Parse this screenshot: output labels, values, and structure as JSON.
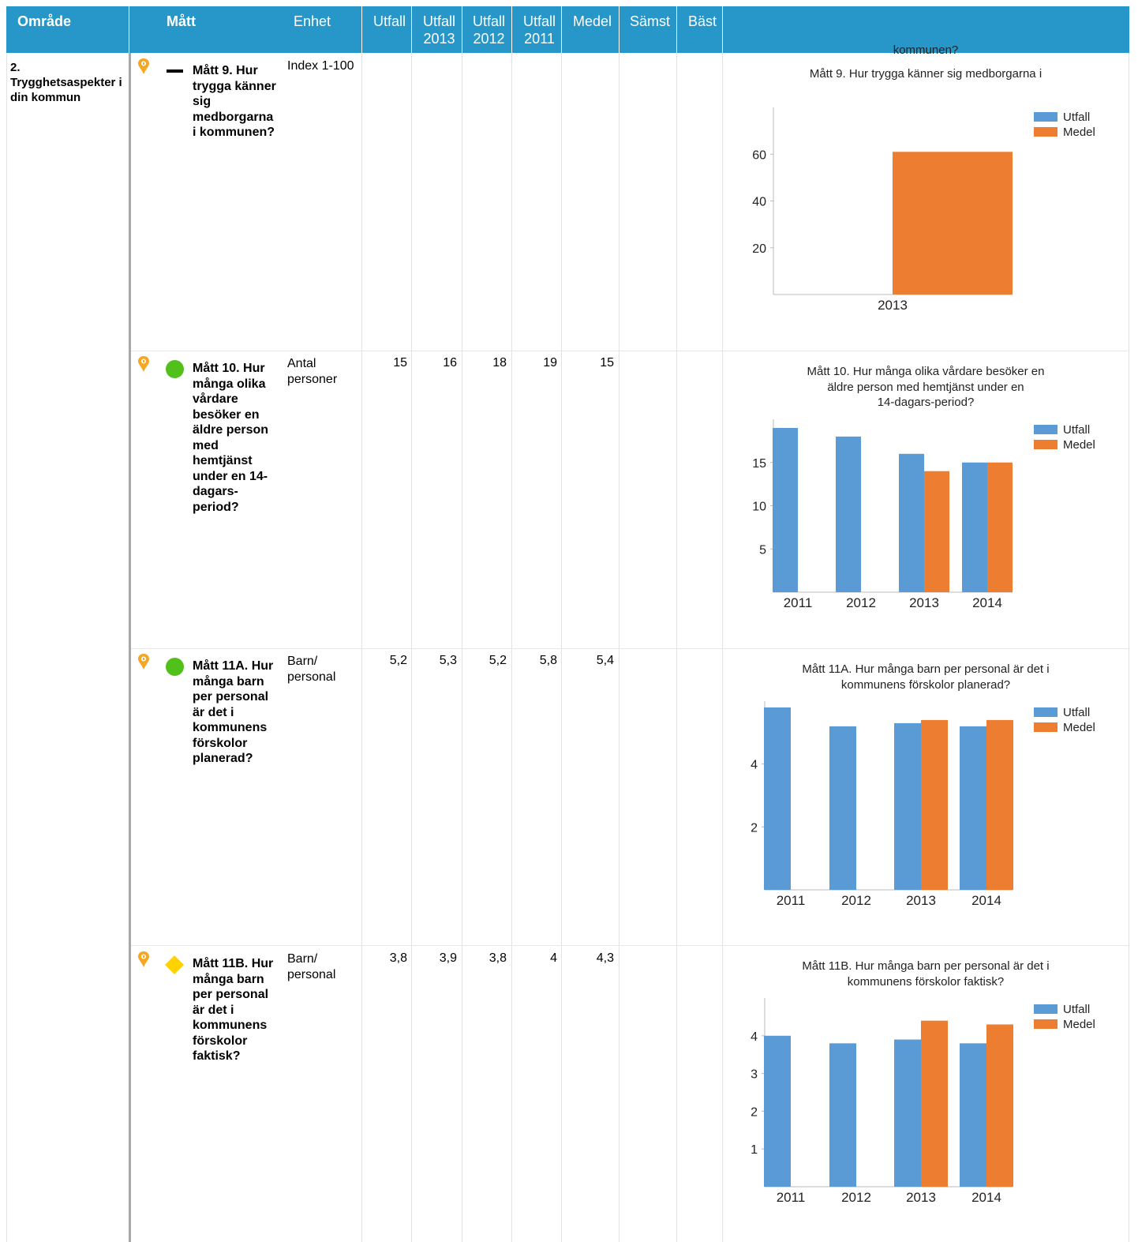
{
  "header": {
    "omrade": "Område",
    "matt": "Mått",
    "enhet": "Enhet",
    "utfall": "Utfall",
    "utfall2013": [
      "Utfall",
      "2013"
    ],
    "utfall2012": [
      "Utfall",
      "2012"
    ],
    "utfall2011": [
      "Utfall",
      "2011"
    ],
    "medel": "Medel",
    "samst": "Sämst",
    "bast": "Bäst"
  },
  "area": "2. Trygghetsaspekter i din kommun",
  "colors": {
    "header": "#2796c8",
    "utfall": "#5b9bd5",
    "medel": "#ed7d31",
    "green": "#52c01a",
    "yellow": "#ffd200",
    "pin": "#f5a623"
  },
  "rows": [
    {
      "status": "dash",
      "desc": "Mått 9. Hur trygga känner sig medborgarna i kommunen?",
      "unit": "Index 1-100",
      "utfall": "",
      "utfall2013": "",
      "utfall2012": "",
      "utfall2011": "",
      "medel": "",
      "samst": "",
      "bast": ""
    },
    {
      "status": "green-circle",
      "desc": "Mått 10. Hur många olika vårdare besöker en äldre person med hemtjänst under en 14-dagars-period?",
      "unit": "Antal personer",
      "utfall": "15",
      "utfall2013": "16",
      "utfall2012": "18",
      "utfall2011": "19",
      "medel": "15",
      "samst": "",
      "bast": ""
    },
    {
      "status": "green-circle",
      "desc": "Mått 11A. Hur många barn per personal är det i kommunens förskolor planerad?",
      "unit": "Barn/ personal",
      "utfall": "5,2",
      "utfall2013": "5,3",
      "utfall2012": "5,2",
      "utfall2011": "5,8",
      "medel": "5,4",
      "samst": "",
      "bast": ""
    },
    {
      "status": "yellow-diamond",
      "desc": "Mått 11B. Hur många barn per personal är det i kommunens förskolor faktisk?",
      "unit": "Barn/ personal",
      "utfall": "3,8",
      "utfall2013": "3,9",
      "utfall2012": "3,8",
      "utfall2011": "4",
      "medel": "4,3",
      "samst": "",
      "bast": ""
    }
  ],
  "chart_data": [
    {
      "type": "bar",
      "title": "Mått 9. Hur trygga känner sig medborgarna i kommunen?",
      "categories": [
        "2013"
      ],
      "series": [
        {
          "name": "Utfall",
          "values": [
            null
          ]
        },
        {
          "name": "Medel",
          "values": [
            61
          ]
        }
      ],
      "yticks": [
        20,
        40,
        60
      ],
      "ylim": [
        0,
        80
      ],
      "legend": "top-right",
      "grid": false
    },
    {
      "type": "bar",
      "title": "Mått 10. Hur många olika vårdare besöker en äldre person med hemtjänst under en 14-dagars-period?",
      "categories": [
        "2011",
        "2012",
        "2013",
        "2014"
      ],
      "series": [
        {
          "name": "Utfall",
          "values": [
            19,
            18,
            16,
            15
          ]
        },
        {
          "name": "Medel",
          "values": [
            null,
            null,
            14,
            15
          ]
        }
      ],
      "yticks": [
        5,
        10,
        15
      ],
      "ylim": [
        0,
        20
      ],
      "legend": "top-right",
      "grid": false
    },
    {
      "type": "bar",
      "title": "Mått 11A. Hur många barn per personal är det i kommunens förskolor planerad?",
      "categories": [
        "2011",
        "2012",
        "2013",
        "2014"
      ],
      "series": [
        {
          "name": "Utfall",
          "values": [
            5.8,
            5.2,
            5.3,
            5.2
          ]
        },
        {
          "name": "Medel",
          "values": [
            null,
            null,
            5.4,
            5.4
          ]
        }
      ],
      "yticks": [
        2,
        4
      ],
      "ylim": [
        0,
        6
      ],
      "legend": "top-right",
      "grid": false
    },
    {
      "type": "bar",
      "title": "Mått 11B. Hur många barn per personal är det i kommunens förskolor faktisk?",
      "categories": [
        "2011",
        "2012",
        "2013",
        "2014"
      ],
      "series": [
        {
          "name": "Utfall",
          "values": [
            4,
            3.8,
            3.9,
            3.8
          ]
        },
        {
          "name": "Medel",
          "values": [
            null,
            null,
            4.4,
            4.3
          ]
        }
      ],
      "yticks": [
        1,
        2,
        3,
        4
      ],
      "ylim": [
        0,
        5
      ],
      "legend": "top-right",
      "grid": false
    }
  ]
}
